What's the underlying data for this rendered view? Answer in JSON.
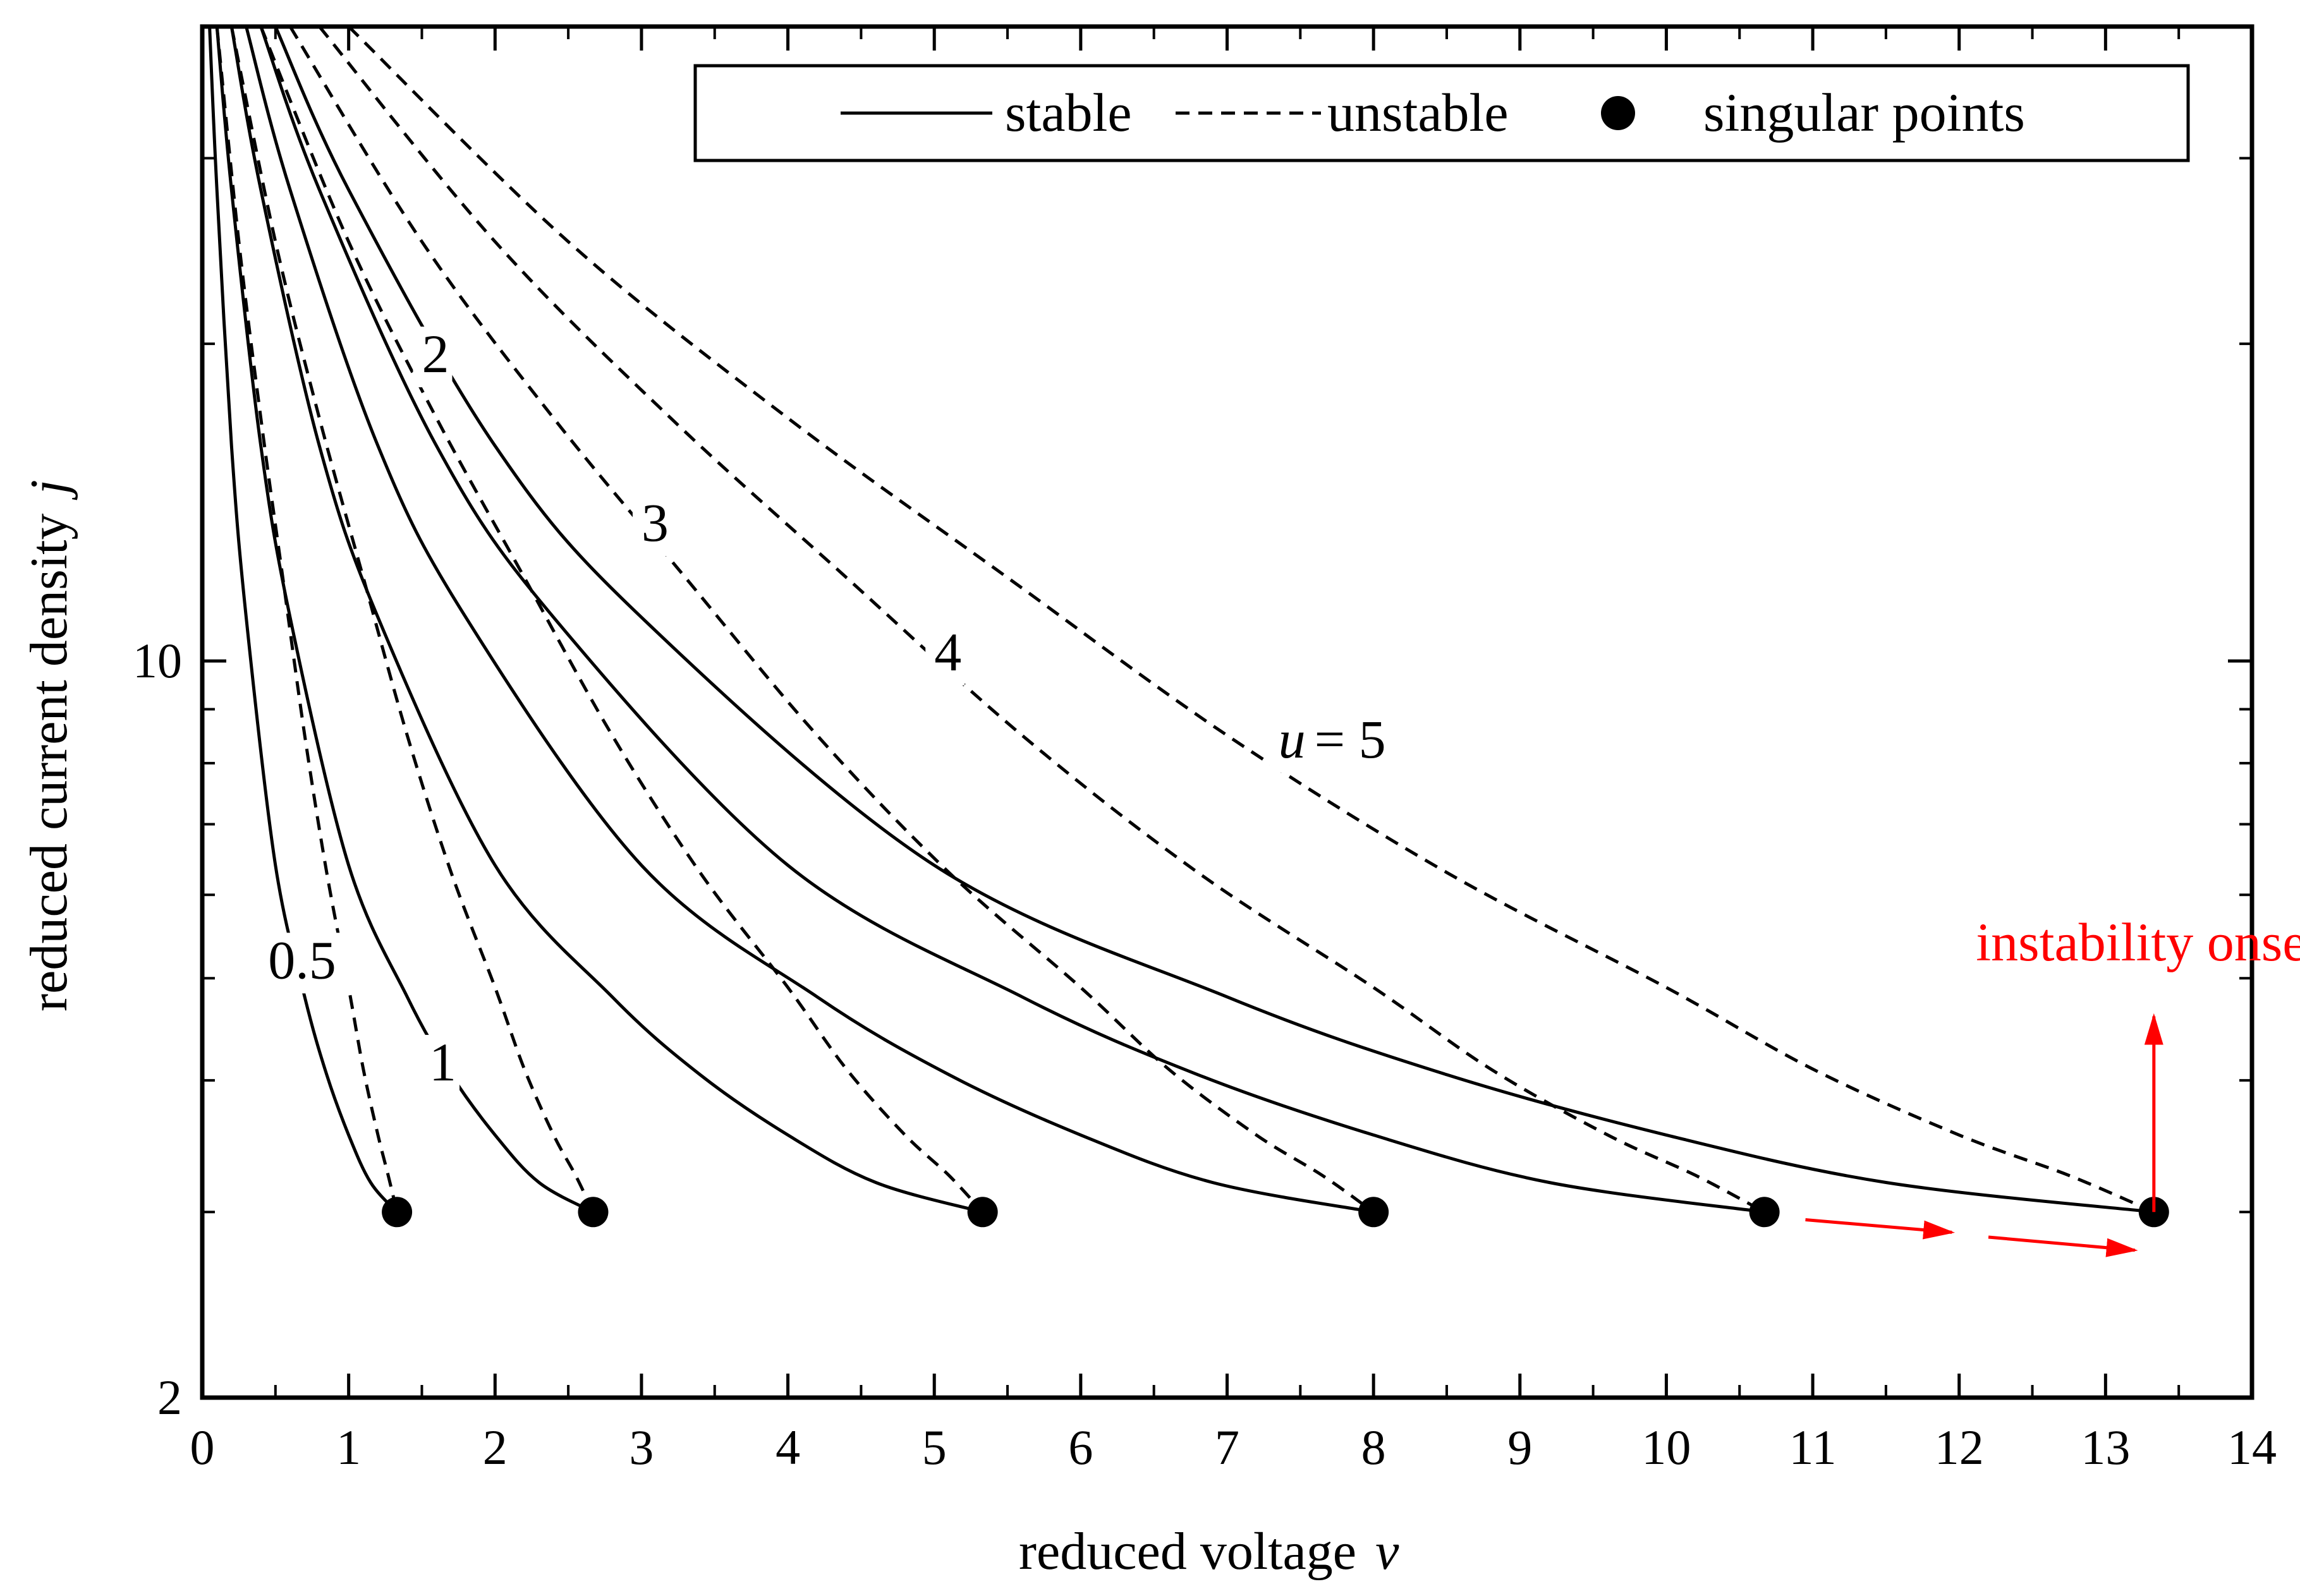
{
  "chart_data": {
    "type": "line",
    "title": "",
    "xlabel": "reduced voltage",
    "xlabel_var": "v",
    "ylabel": "reduced current density",
    "ylabel_var": "j",
    "xlim": [
      0,
      14
    ],
    "ylim": [
      2,
      40
    ],
    "yscale": "log",
    "x_ticks": [
      "0",
      "1",
      "2",
      "3",
      "4",
      "5",
      "6",
      "7",
      "8",
      "9",
      "10",
      "11",
      "12",
      "13",
      "14"
    ],
    "y_tick_labels": [
      {
        "value": 10,
        "label": "10"
      },
      {
        "value": 2,
        "label": "2"
      }
    ],
    "y_minor_ticks": [
      3,
      4,
      5,
      6,
      7,
      8,
      9,
      20,
      30
    ],
    "grid": false,
    "legend": {
      "placement": "top-right",
      "entries": [
        {
          "label": "stable",
          "style": "solid"
        },
        {
          "label": "unstable",
          "style": "dashed"
        },
        {
          "label": "singular points",
          "style": "marker"
        }
      ]
    },
    "series": [
      {
        "name": "u = 0.5",
        "label": "0.5",
        "u": 0.5,
        "singular_point": {
          "x": 1.33,
          "y": 3.0
        },
        "stable": [
          [
            0.05,
            40
          ],
          [
            0.1,
            28
          ],
          [
            0.2,
            16
          ],
          [
            0.3,
            11
          ],
          [
            0.5,
            6.4
          ],
          [
            0.7,
            4.8
          ],
          [
            0.85,
            4.05
          ],
          [
            1.0,
            3.55
          ],
          [
            1.15,
            3.2
          ],
          [
            1.33,
            3.0
          ]
        ],
        "unstable": [
          [
            0.1,
            40
          ],
          [
            0.25,
            25
          ],
          [
            0.4,
            17
          ],
          [
            0.55,
            12
          ],
          [
            0.7,
            8.5
          ],
          [
            0.85,
            6.3
          ],
          [
            1.0,
            4.9
          ],
          [
            1.1,
            4.1
          ],
          [
            1.2,
            3.55
          ],
          [
            1.27,
            3.25
          ],
          [
            1.33,
            3.0
          ]
        ]
      },
      {
        "name": "u = 1",
        "label": "1",
        "u": 1,
        "singular_point": {
          "x": 2.67,
          "y": 3.0
        },
        "stable": [
          [
            0.1,
            40
          ],
          [
            0.2,
            28
          ],
          [
            0.4,
            16
          ],
          [
            0.6,
            11
          ],
          [
            1.0,
            6.4
          ],
          [
            1.4,
            4.8
          ],
          [
            1.7,
            4.05
          ],
          [
            2.0,
            3.55
          ],
          [
            2.3,
            3.2
          ],
          [
            2.67,
            3.0
          ]
        ],
        "unstable": [
          [
            0.2,
            40
          ],
          [
            0.5,
            25
          ],
          [
            0.8,
            17
          ],
          [
            1.1,
            12
          ],
          [
            1.4,
            8.5
          ],
          [
            1.7,
            6.3
          ],
          [
            2.0,
            4.9
          ],
          [
            2.2,
            4.1
          ],
          [
            2.4,
            3.55
          ],
          [
            2.55,
            3.25
          ],
          [
            2.67,
            3.0
          ]
        ]
      },
      {
        "name": "u = 2",
        "label": "2",
        "u": 2,
        "singular_point": {
          "x": 5.33,
          "y": 3.0
        },
        "stable": [
          [
            0.2,
            40
          ],
          [
            0.4,
            28
          ],
          [
            0.8,
            16
          ],
          [
            1.2,
            11
          ],
          [
            2.0,
            6.4
          ],
          [
            2.8,
            4.8
          ],
          [
            3.4,
            4.05
          ],
          [
            4.0,
            3.55
          ],
          [
            4.6,
            3.2
          ],
          [
            5.33,
            3.0
          ]
        ],
        "unstable": [
          [
            0.4,
            40
          ],
          [
            1.0,
            25
          ],
          [
            1.6,
            17
          ],
          [
            2.2,
            12
          ],
          [
            2.8,
            8.5
          ],
          [
            3.4,
            6.3
          ],
          [
            4.0,
            4.9
          ],
          [
            4.4,
            4.1
          ],
          [
            4.8,
            3.55
          ],
          [
            5.1,
            3.25
          ],
          [
            5.33,
            3.0
          ]
        ]
      },
      {
        "name": "u = 3",
        "label": "3",
        "u": 3,
        "singular_point": {
          "x": 8.0,
          "y": 3.0
        },
        "stable": [
          [
            0.3,
            40
          ],
          [
            0.6,
            28
          ],
          [
            1.2,
            16
          ],
          [
            1.8,
            11
          ],
          [
            3.0,
            6.4
          ],
          [
            4.2,
            4.8
          ],
          [
            5.1,
            4.05
          ],
          [
            6.0,
            3.55
          ],
          [
            6.9,
            3.2
          ],
          [
            8.0,
            3.0
          ]
        ],
        "unstable": [
          [
            0.6,
            40
          ],
          [
            1.5,
            25
          ],
          [
            2.4,
            17
          ],
          [
            3.3,
            12
          ],
          [
            4.2,
            8.5
          ],
          [
            5.1,
            6.3
          ],
          [
            6.0,
            4.9
          ],
          [
            6.6,
            4.1
          ],
          [
            7.2,
            3.55
          ],
          [
            7.65,
            3.25
          ],
          [
            8.0,
            3.0
          ]
        ]
      },
      {
        "name": "u = 4",
        "label": "4",
        "u": 4,
        "singular_point": {
          "x": 10.67,
          "y": 3.0
        },
        "stable": [
          [
            0.4,
            40
          ],
          [
            0.8,
            28
          ],
          [
            1.6,
            16
          ],
          [
            2.4,
            11
          ],
          [
            4.0,
            6.4
          ],
          [
            5.6,
            4.8
          ],
          [
            6.8,
            4.05
          ],
          [
            8.0,
            3.55
          ],
          [
            9.2,
            3.2
          ],
          [
            10.67,
            3.0
          ]
        ],
        "unstable": [
          [
            0.8,
            40
          ],
          [
            2.0,
            25
          ],
          [
            3.2,
            17
          ],
          [
            4.4,
            12
          ],
          [
            5.6,
            8.5
          ],
          [
            6.8,
            6.3
          ],
          [
            8.0,
            4.9
          ],
          [
            8.8,
            4.1
          ],
          [
            9.6,
            3.55
          ],
          [
            10.2,
            3.25
          ],
          [
            10.67,
            3.0
          ]
        ]
      },
      {
        "name": "u = 5",
        "label": "u = 5",
        "label_var": "u",
        "label_rest": "= 5",
        "u": 5,
        "singular_point": {
          "x": 13.33,
          "y": 3.0
        },
        "stable": [
          [
            0.5,
            40
          ],
          [
            1.0,
            28
          ],
          [
            2.0,
            16
          ],
          [
            3.0,
            11
          ],
          [
            5.0,
            6.4
          ],
          [
            7.0,
            4.8
          ],
          [
            8.5,
            4.05
          ],
          [
            10.0,
            3.55
          ],
          [
            11.5,
            3.2
          ],
          [
            13.33,
            3.0
          ]
        ],
        "unstable": [
          [
            1.0,
            40
          ],
          [
            2.5,
            25
          ],
          [
            4.0,
            17
          ],
          [
            5.5,
            12
          ],
          [
            7.0,
            8.5
          ],
          [
            8.5,
            6.3
          ],
          [
            10.0,
            4.9
          ],
          [
            11.0,
            4.1
          ],
          [
            12.0,
            3.55
          ],
          [
            12.75,
            3.25
          ],
          [
            13.33,
            3.0
          ]
        ]
      }
    ],
    "curve_label_positions": [
      {
        "text": "0.5",
        "x": 0.45,
        "y": 5.0
      },
      {
        "text": "1",
        "x": 1.55,
        "y": 4.0
      },
      {
        "text": "2",
        "x": 1.5,
        "y": 18.8
      },
      {
        "text": "3",
        "x": 3.0,
        "y": 13.0
      },
      {
        "text": "4",
        "x": 5.0,
        "y": 9.8
      },
      {
        "text": "u = 5",
        "x": 7.35,
        "y": 8.1
      }
    ],
    "annotation": {
      "text": "instability onset",
      "color": "#ff0000",
      "x": 13.33,
      "y": 5.2,
      "arrows": [
        {
          "from": [
            13.33,
            3.0
          ],
          "to": [
            13.33,
            4.6
          ]
        },
        {
          "from": [
            10.95,
            2.95
          ],
          "to": [
            11.95,
            2.87
          ]
        },
        {
          "from": [
            12.2,
            2.84
          ],
          "to": [
            13.2,
            2.76
          ]
        }
      ]
    },
    "colors": {
      "curves": "#000000",
      "annotation": "#ff0000",
      "background": "#ffffff"
    }
  }
}
